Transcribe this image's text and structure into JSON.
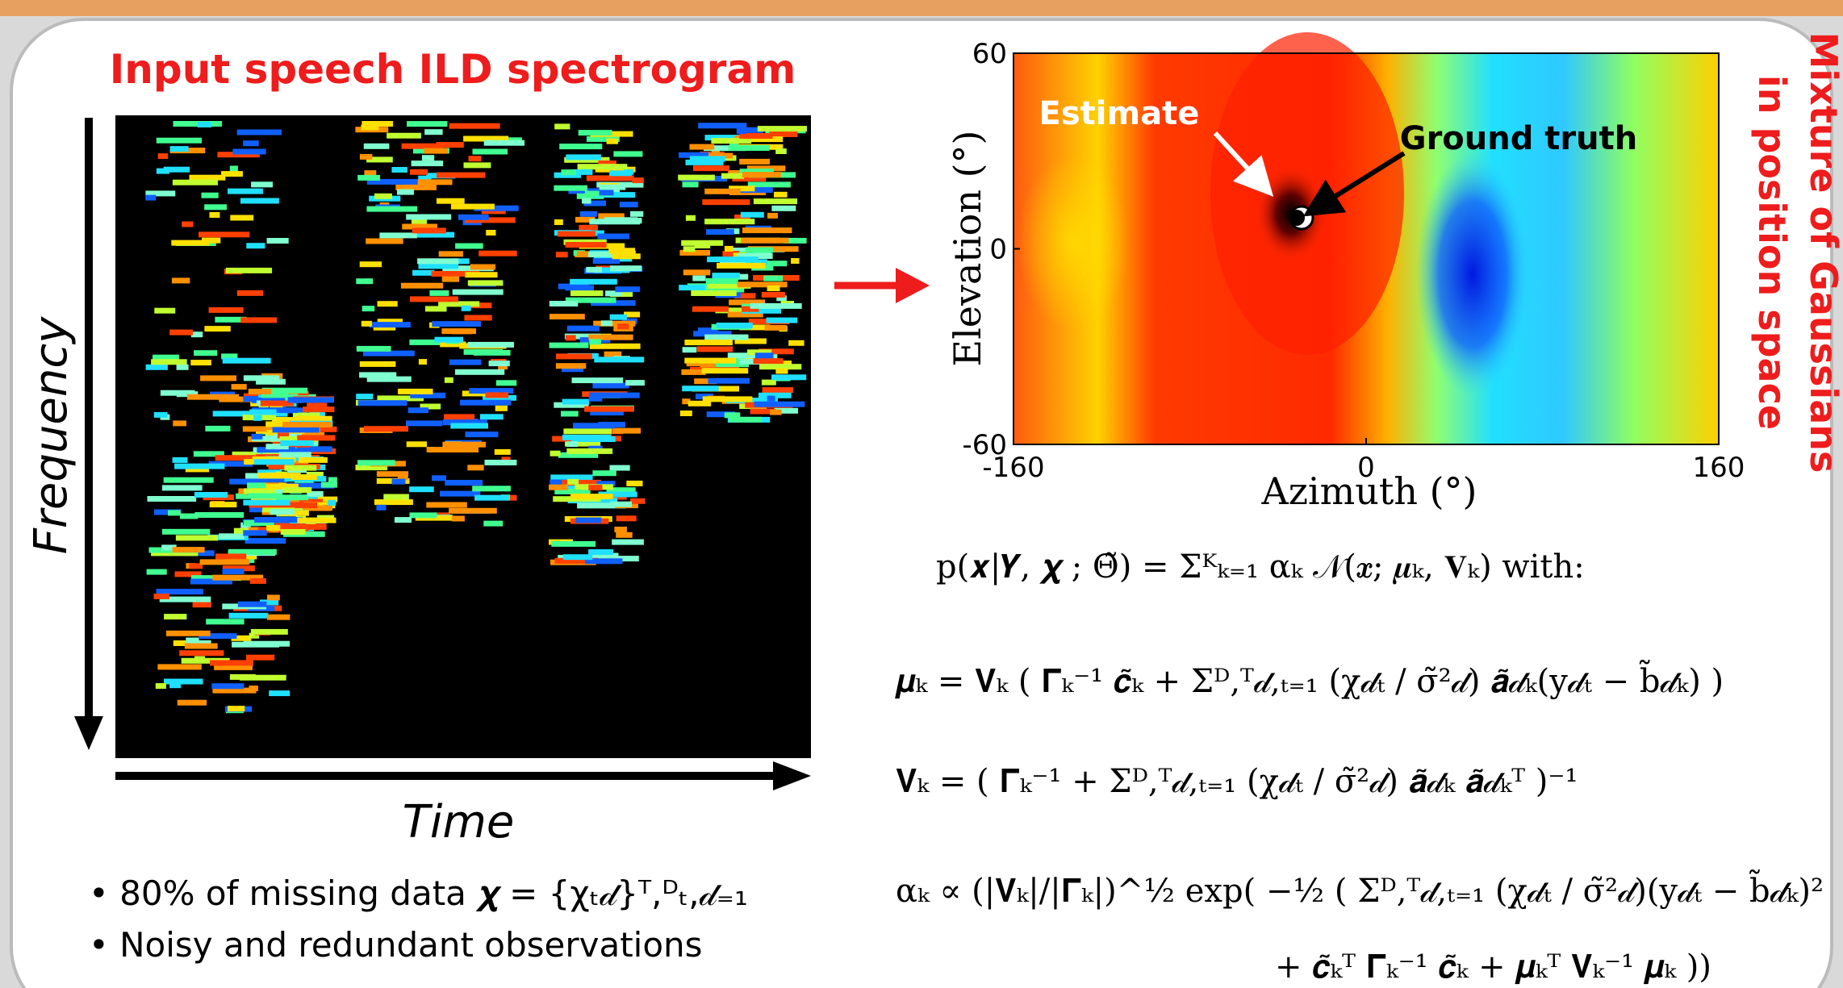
{
  "left": {
    "title": "Input speech ILD spectrogram",
    "y_axis_label": "Frequency",
    "x_axis_label": "Time",
    "bullets": [
      "• 80% of missing data 𝝌 = {χₜ𝒹}ᵀ,ᴰₜ,𝒹₌₁",
      "• Noisy and redundant observations"
    ]
  },
  "right": {
    "side_label": [
      "Mixture of Gaussians",
      "in position space"
    ],
    "heatmap": {
      "x_axis_label": "Azimuth (°)",
      "y_axis_label": "Elevation (°)",
      "xlim": [
        -160,
        160
      ],
      "ylim": [
        -60,
        60
      ],
      "xticks": [
        -160,
        0,
        160
      ],
      "yticks": [
        60,
        0,
        -60
      ],
      "annotations": [
        "Estimate",
        "Ground truth"
      ]
    },
    "equations": [
      "p(𝒙|𝒀, 𝝌 ; Θ̃) = Σᴷₖ₌₁ αₖ 𝒩(𝒙; 𝝁ₖ, 𝐕ₖ)  with:",
      "𝝁ₖ = 𝐕ₖ ( 𝚪̃ₖ⁻¹ 𝒄̃ₖ + Σᴰ,ᵀ𝒹,ₜ₌₁ (χ𝒹ₜ / σ̃²𝒹) 𝒂̃𝒹ₖ(y𝒹ₜ − b̃𝒹ₖ) )",
      "𝐕ₖ = ( 𝚪̃ₖ⁻¹ + Σᴰ,ᵀ𝒹,ₜ₌₁ (χ𝒹ₜ / σ̃²𝒹) 𝒂̃𝒹ₖ 𝒂̃𝒹ₖᵀ )⁻¹",
      "αₖ ∝ (|𝐕ₖ|/|𝚪̃ₖ|)^½ exp( −½ ( Σᴰ,ᵀ𝒹,ₜ₌₁ (χ𝒹ₜ / σ̃²𝒹)(y𝒹ₜ − b̃𝒹ₖ)²",
      "+ 𝒄̃ₖᵀ 𝚪̃ₖ⁻¹ 𝒄̃ₖ + 𝝁ₖᵀ 𝐕ₖ⁻¹ 𝝁ₖ ))"
    ]
  }
}
